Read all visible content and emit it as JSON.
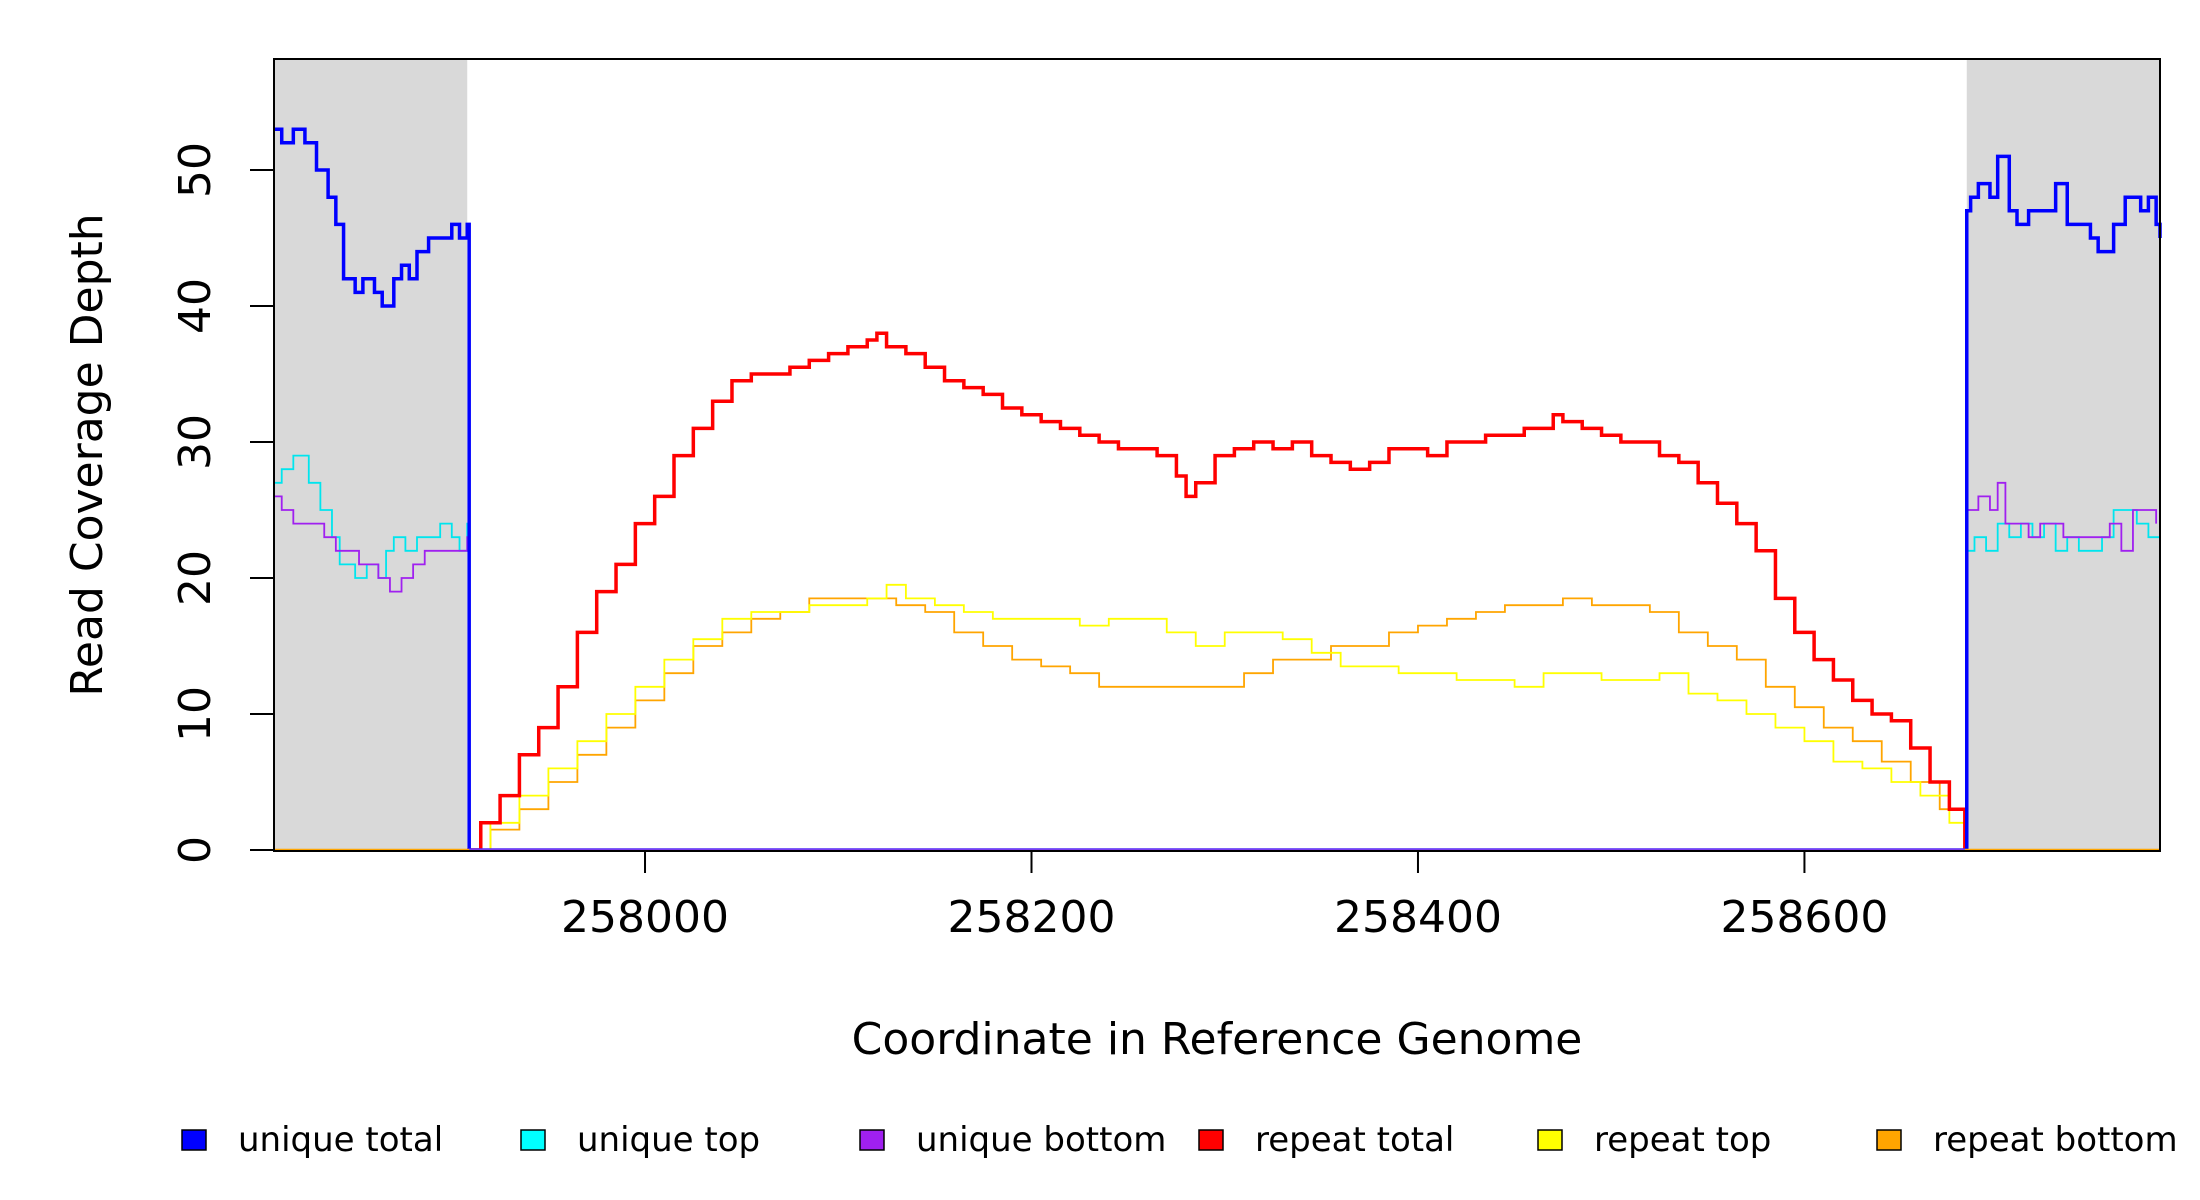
{
  "chart_data": {
    "type": "line",
    "xlabel": "Coordinate in Reference Genome",
    "ylabel": "Read Coverage Depth",
    "xlim": [
      257808,
      258784
    ],
    "ylim": [
      0,
      58
    ],
    "x_ticks": [
      258000,
      258200,
      258400,
      258600
    ],
    "y_ticks": [
      0,
      10,
      20,
      30,
      40,
      50
    ],
    "shaded_regions": [
      [
        257808,
        257908
      ],
      [
        258684,
        258784
      ]
    ],
    "series": [
      {
        "name": "unique total",
        "color": "#0000ff",
        "x": [
          257808,
          257812,
          257818,
          257824,
          257830,
          257836,
          257840,
          257844,
          257850,
          257854,
          257860,
          257864,
          257870,
          257874,
          257878,
          257882,
          257888,
          257894,
          257900,
          257904,
          257906,
          257908,
          257909,
          258683,
          258684,
          258686,
          258690,
          258696,
          258700,
          258706,
          258710,
          258716,
          258720,
          258726,
          258730,
          258736,
          258742,
          258748,
          258752,
          258756,
          258760,
          258766,
          258770,
          258774,
          258778,
          258782,
          258784
        ],
        "y": [
          53,
          52,
          53,
          52,
          50,
          48,
          46,
          42,
          41,
          42,
          41,
          40,
          42,
          43,
          42,
          44,
          45,
          45,
          46,
          45,
          45,
          46,
          0,
          0,
          47,
          48,
          49,
          48,
          51,
          47,
          46,
          47,
          47,
          47,
          49,
          46,
          46,
          45,
          44,
          44,
          46,
          48,
          48,
          47,
          48,
          46,
          45
        ]
      },
      {
        "name": "unique top",
        "color": "#00e5ee",
        "x": [
          257808,
          257812,
          257818,
          257826,
          257832,
          257838,
          257842,
          257846,
          257850,
          257856,
          257862,
          257866,
          257870,
          257876,
          257882,
          257888,
          257894,
          257900,
          257904,
          257908,
          257909,
          258683,
          258684,
          258688,
          258694,
          258700,
          258706,
          258712,
          258718,
          258724,
          258730,
          258736,
          258742,
          258748,
          258754,
          258760,
          258766,
          258772,
          258778,
          258784
        ],
        "y": [
          27,
          28,
          29,
          27,
          25,
          23,
          21,
          21,
          20,
          21,
          20,
          22,
          23,
          22,
          23,
          23,
          24,
          23,
          22,
          24,
          0,
          0,
          22,
          23,
          22,
          24,
          23,
          24,
          23,
          24,
          22,
          23,
          22,
          22,
          23,
          25,
          25,
          24,
          23,
          22
        ]
      },
      {
        "name": "unique bottom",
        "color": "#a020f0",
        "x": [
          257808,
          257812,
          257818,
          257826,
          257834,
          257840,
          257846,
          257852,
          257856,
          257862,
          257868,
          257874,
          257880,
          257886,
          257892,
          257898,
          257904,
          257908,
          257909,
          258683,
          258684,
          258690,
          258696,
          258700,
          258704,
          258710,
          258716,
          258722,
          258728,
          258734,
          258740,
          258746,
          258752,
          258758,
          258764,
          258770,
          258776,
          258782
        ],
        "y": [
          26,
          25,
          24,
          24,
          23,
          22,
          22,
          21,
          21,
          20,
          19,
          20,
          21,
          22,
          22,
          22,
          22,
          23,
          0,
          0,
          25,
          26,
          25,
          27,
          24,
          24,
          23,
          24,
          24,
          23,
          23,
          23,
          23,
          24,
          22,
          25,
          25,
          24
        ]
      },
      {
        "name": "repeat total",
        "color": "#ff0000",
        "x": [
          257908,
          257915,
          257925,
          257935,
          257945,
          257955,
          257965,
          257975,
          257985,
          257995,
          258005,
          258015,
          258025,
          258035,
          258045,
          258055,
          258065,
          258075,
          258085,
          258095,
          258105,
          258115,
          258120,
          258125,
          258135,
          258145,
          258155,
          258165,
          258175,
          258185,
          258195,
          258205,
          258215,
          258225,
          258235,
          258245,
          258255,
          258265,
          258275,
          258280,
          258285,
          258295,
          258305,
          258315,
          258325,
          258335,
          258345,
          258355,
          258365,
          258375,
          258385,
          258395,
          258405,
          258415,
          258425,
          258435,
          258445,
          258455,
          258465,
          258470,
          258475,
          258485,
          258495,
          258505,
          258515,
          258525,
          258535,
          258545,
          258555,
          258565,
          258575,
          258585,
          258595,
          258605,
          258615,
          258625,
          258635,
          258645,
          258655,
          258665,
          258675,
          258683
        ],
        "y": [
          0,
          2,
          4,
          7,
          9,
          12,
          16,
          19,
          21,
          24,
          26,
          29,
          31,
          33,
          34.5,
          35,
          35,
          35.5,
          36,
          36.5,
          37,
          37.5,
          38,
          37,
          36.5,
          35.5,
          34.5,
          34,
          33.5,
          32.5,
          32,
          31.5,
          31,
          30.5,
          30,
          29.5,
          29.5,
          29,
          27.5,
          26,
          27,
          29,
          29.5,
          30,
          29.5,
          30,
          29,
          28.5,
          28,
          28.5,
          29.5,
          29.5,
          29,
          30,
          30,
          30.5,
          30.5,
          31,
          31,
          32,
          31.5,
          31,
          30.5,
          30,
          30,
          29,
          28.5,
          27,
          25.5,
          24,
          22,
          18.5,
          16,
          14,
          12.5,
          11,
          10,
          9.5,
          7.5,
          5,
          3,
          0
        ]
      },
      {
        "name": "repeat top",
        "color": "#ffff00",
        "x": [
          257908,
          257920,
          257935,
          257950,
          257965,
          257980,
          257995,
          258010,
          258025,
          258040,
          258055,
          258070,
          258085,
          258100,
          258115,
          258125,
          258135,
          258150,
          258165,
          258180,
          258195,
          258210,
          258225,
          258240,
          258255,
          258270,
          258285,
          258300,
          258315,
          258330,
          258345,
          258360,
          258375,
          258390,
          258405,
          258420,
          258435,
          258450,
          258465,
          258480,
          258495,
          258510,
          258525,
          258540,
          258555,
          258570,
          258585,
          258600,
          258615,
          258630,
          258645,
          258660,
          258675,
          258683
        ],
        "y": [
          0,
          2,
          4,
          6,
          8,
          10,
          12,
          14,
          15.5,
          17,
          17.5,
          17.5,
          18,
          18,
          18.5,
          19.5,
          18.5,
          18,
          17.5,
          17,
          17,
          17,
          16.5,
          17,
          17,
          16,
          15,
          16,
          16,
          15.5,
          14.5,
          13.5,
          13.5,
          13,
          13,
          12.5,
          12.5,
          12,
          13,
          13,
          12.5,
          12.5,
          13,
          11.5,
          11,
          10,
          9,
          8,
          6.5,
          6,
          5,
          4,
          2,
          0
        ]
      },
      {
        "name": "repeat bottom",
        "color": "#ffa500",
        "x": [
          257908,
          257920,
          257935,
          257950,
          257965,
          257980,
          257995,
          258010,
          258025,
          258040,
          258055,
          258070,
          258085,
          258100,
          258115,
          258130,
          258145,
          258160,
          258175,
          258190,
          258205,
          258220,
          258235,
          258250,
          258265,
          258280,
          258295,
          258310,
          258325,
          258340,
          258355,
          258370,
          258385,
          258400,
          258415,
          258430,
          258445,
          258460,
          258475,
          258490,
          258505,
          258520,
          258535,
          258550,
          258565,
          258580,
          258595,
          258610,
          258625,
          258640,
          258655,
          258670,
          258683
        ],
        "y": [
          0,
          1.5,
          3,
          5,
          7,
          9,
          11,
          13,
          15,
          16,
          17,
          17.5,
          18.5,
          18.5,
          18.5,
          18,
          17.5,
          16,
          15,
          14,
          13.5,
          13,
          12,
          12,
          12,
          12,
          12,
          13,
          14,
          14,
          15,
          15,
          16,
          16.5,
          17,
          17.5,
          18,
          18,
          18.5,
          18,
          18,
          17.5,
          16,
          15,
          14,
          12,
          10.5,
          9,
          8,
          6.5,
          5,
          3,
          0
        ]
      }
    ]
  },
  "legend": {
    "entries": [
      {
        "label": "unique total",
        "color": "#0000ff"
      },
      {
        "label": "unique top",
        "color": "#00ffff"
      },
      {
        "label": "unique bottom",
        "color": "#a020f0"
      },
      {
        "label": "repeat total",
        "color": "#ff0000"
      },
      {
        "label": "repeat top",
        "color": "#ffff00"
      },
      {
        "label": "repeat bottom",
        "color": "#ffa500"
      }
    ]
  },
  "colors": {
    "shading": "#d9d9d9",
    "axis": "#000000"
  }
}
